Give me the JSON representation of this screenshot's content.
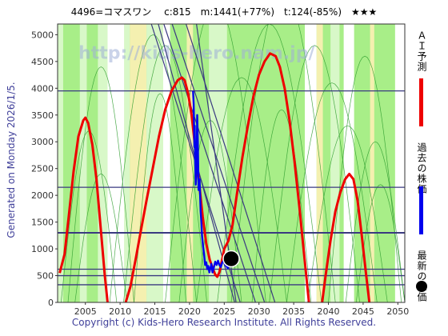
{
  "header": {
    "title": "4496=コマスワン　 c:815　m:1441(+77%)　t:124(-85%)　★★★"
  },
  "side_note": "Generated on Monday 2026/1/5.",
  "watermark": "http://kids-hero.nam.jp/",
  "footer": "Copyright (c) Kids-Hero Research Institute. All Rights Reserved.",
  "legend": [
    {
      "label": "ＡＩ予測",
      "color": "#ee0000"
    },
    {
      "label": "過去の株価",
      "color": "#0000ee"
    },
    {
      "label": "最新の株価",
      "color": "#000000"
    }
  ],
  "colors": {
    "green_band": "#a8ee88",
    "light_band": "#d8f8c8",
    "yellow_band": "#f4f0b0",
    "grid": "#3a3a80"
  },
  "chart_data": {
    "type": "line",
    "xlim": [
      2001,
      2051
    ],
    "ylim": [
      0,
      5200
    ],
    "x_ticks": [
      2005,
      2010,
      2015,
      2020,
      2025,
      2030,
      2035,
      2040,
      2045,
      2050
    ],
    "y_ticks": [
      0,
      500,
      1000,
      1500,
      2000,
      2500,
      3000,
      3500,
      4000,
      4500,
      5000
    ],
    "hlines": [
      330,
      500,
      620,
      1300,
      2150,
      3950
    ],
    "series": [
      {
        "name": "ＡＩ予測",
        "color": "#ee0000",
        "segments": [
          [
            [
              2001.3,
              550
            ],
            [
              2002,
              900
            ],
            [
              2002.6,
              1600
            ],
            [
              2003.3,
              2450
            ],
            [
              2004,
              3100
            ],
            [
              2004.7,
              3400
            ],
            [
              2005,
              3450
            ],
            [
              2005.4,
              3350
            ],
            [
              2006,
              2950
            ],
            [
              2006.6,
              2300
            ],
            [
              2007.2,
              1400
            ],
            [
              2007.8,
              500
            ],
            [
              2008.2,
              0
            ]
          ],
          [
            [
              2010.8,
              0
            ],
            [
              2011.5,
              300
            ],
            [
              2012.3,
              850
            ],
            [
              2013,
              1350
            ],
            [
              2013.8,
              1900
            ],
            [
              2014.7,
              2500
            ],
            [
              2015.6,
              3100
            ],
            [
              2016.5,
              3600
            ],
            [
              2017.4,
              3950
            ],
            [
              2018.3,
              4150
            ],
            [
              2018.9,
              4200
            ],
            [
              2019.3,
              4150
            ],
            [
              2019.8,
              3900
            ],
            [
              2020.3,
              3500
            ],
            [
              2020.9,
              2800
            ],
            [
              2021.4,
              2200
            ],
            [
              2021.9,
              1600
            ],
            [
              2022.4,
              1100
            ],
            [
              2022.9,
              800
            ],
            [
              2023.3,
              650
            ],
            [
              2023.7,
              520
            ],
            [
              2024.0,
              480
            ],
            [
              2024.3,
              560
            ],
            [
              2024.7,
              800
            ],
            [
              2025.0,
              1000
            ]
          ],
          [
            [
              2025.0,
              1000
            ],
            [
              2025.6,
              1150
            ],
            [
              2026.2,
              1450
            ],
            [
              2026.8,
              2000
            ],
            [
              2027.6,
              2700
            ],
            [
              2028.4,
              3300
            ],
            [
              2029.2,
              3850
            ],
            [
              2030,
              4250
            ],
            [
              2030.8,
              4500
            ],
            [
              2031.6,
              4650
            ],
            [
              2032.4,
              4600
            ],
            [
              2033,
              4400
            ],
            [
              2033.7,
              4000
            ],
            [
              2034.4,
              3400
            ],
            [
              2035.1,
              2650
            ],
            [
              2035.8,
              1800
            ],
            [
              2036.5,
              900
            ],
            [
              2037.2,
              0
            ]
          ],
          [
            [
              2039.1,
              0
            ],
            [
              2039.6,
              500
            ],
            [
              2040.3,
              1150
            ],
            [
              2041,
              1700
            ],
            [
              2041.7,
              2050
            ],
            [
              2042.4,
              2300
            ],
            [
              2043,
              2400
            ],
            [
              2043.6,
              2300
            ],
            [
              2044.2,
              1900
            ],
            [
              2044.8,
              1250
            ],
            [
              2045.4,
              550
            ],
            [
              2045.9,
              0
            ]
          ]
        ]
      },
      {
        "name": "過去の株価",
        "color": "#0000ee",
        "segments": [
          [
            [
              2020.5,
              3950
            ],
            [
              2020.6,
              3700
            ],
            [
              2020.7,
              2900
            ],
            [
              2020.75,
              3300
            ],
            [
              2020.8,
              2700
            ],
            [
              2020.9,
              2200
            ],
            [
              2021,
              2450
            ],
            [
              2021.1,
              3500
            ],
            [
              2021.2,
              3000
            ],
            [
              2021.3,
              2100
            ],
            [
              2021.45,
              2300
            ],
            [
              2021.6,
              1700
            ],
            [
              2021.7,
              1500
            ],
            [
              2021.8,
              1250
            ],
            [
              2021.95,
              1050
            ],
            [
              2022.1,
              900
            ],
            [
              2022.25,
              700
            ],
            [
              2022.4,
              750
            ],
            [
              2022.55,
              620
            ],
            [
              2022.7,
              680
            ],
            [
              2022.85,
              560
            ],
            [
              2023,
              640
            ],
            [
              2023.15,
              720
            ],
            [
              2023.3,
              560
            ],
            [
              2023.5,
              650
            ],
            [
              2023.7,
              760
            ],
            [
              2023.9,
              700
            ],
            [
              2024.1,
              780
            ],
            [
              2024.3,
              700
            ],
            [
              2024.5,
              660
            ],
            [
              2024.7,
              740
            ],
            [
              2024.9,
              780
            ],
            [
              2025.1,
              720
            ],
            [
              2025.3,
              680
            ],
            [
              2025.5,
              640
            ],
            [
              2025.8,
              800
            ],
            [
              2026.0,
              815
            ]
          ]
        ]
      }
    ],
    "latest": {
      "x": 2026.0,
      "y": 815
    },
    "trend_lines": [
      [
        [
          2014.5,
          5200
        ],
        [
          2027.3,
          0
        ]
      ],
      [
        [
          2015.5,
          5200
        ],
        [
          2026.5,
          0
        ]
      ],
      [
        [
          2016.3,
          5200
        ],
        [
          2029.5,
          0
        ]
      ],
      [
        [
          2017.5,
          5200
        ],
        [
          2030.8,
          0
        ]
      ],
      [
        [
          2019.5,
          5200
        ],
        [
          2032.3,
          0
        ]
      ],
      [
        [
          2021,
          5200
        ],
        [
          2026.7,
          0
        ]
      ]
    ]
  }
}
